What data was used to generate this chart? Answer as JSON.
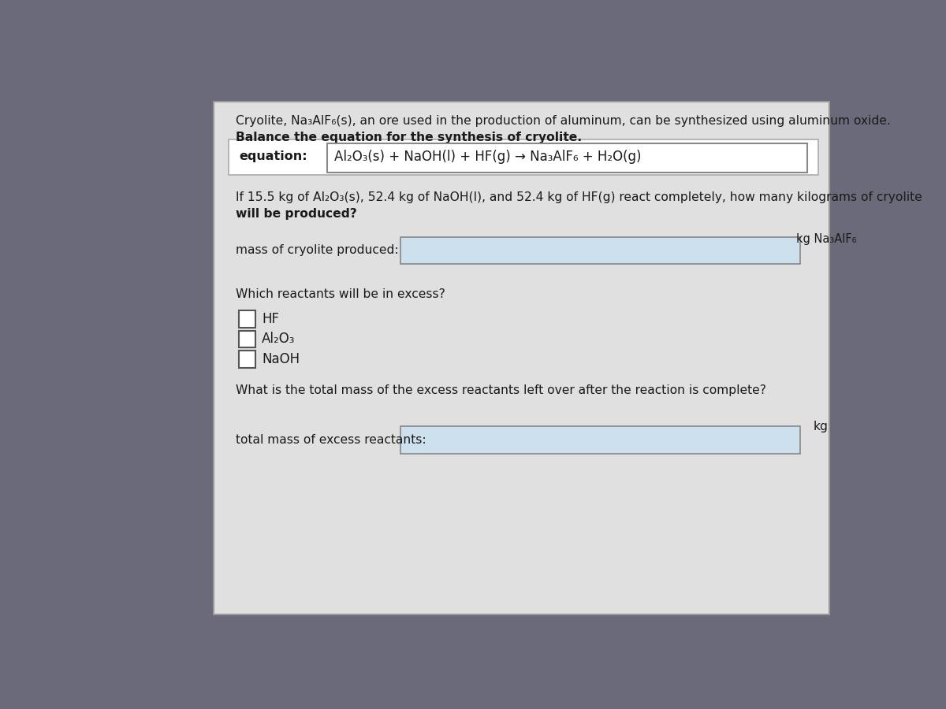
{
  "bg_outer": "#6a6a7a",
  "panel_color": "#e0e0e0",
  "text_color": "#1a1a1a",
  "input_box_color": "#cce0ee",
  "title_line1": "Cryolite, Na₃AlF₆(s), an ore used in the production of aluminum, can be synthesized using aluminum oxide.",
  "title_line2": "Balance the equation for the synthesis of cryolite.",
  "equation_label": "equation:",
  "equation_text": "Al₂O₃(s) + NaOH(l) + HF(g) → Na₃AlF₆ + H₂O(g)",
  "question1_line1": "If 15.5 kg of Al₂O₃(s), 52.4 kg of NaOH(l), and 52.4 kg of HF(g) react completely, how many kilograms of cryolite",
  "question1_line2": "will be produced?",
  "label1": "mass of cryolite produced:",
  "unit1": "kg Na₃AlF₆",
  "question2": "Which reactants will be in excess?",
  "option1": "HF",
  "option2": "Al₂O₃",
  "option3": "NaOH",
  "question3": "What is the total mass of the excess reactants left over after the reaction is complete?",
  "unit2": "kg",
  "label2": "total mass of excess reactants:"
}
